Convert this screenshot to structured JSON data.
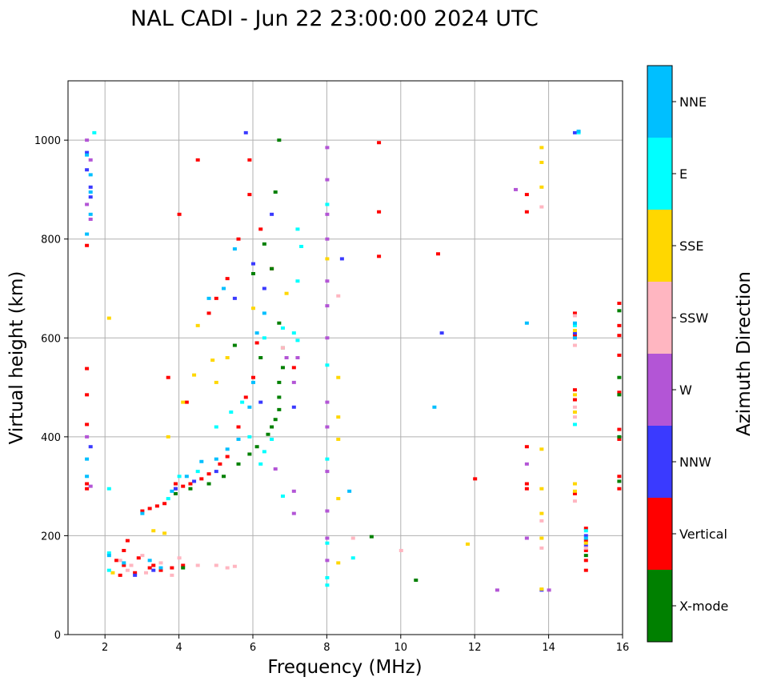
{
  "chart_data": {
    "type": "scatter",
    "title": "NAL CADI - Jun 22 23:00:00 2024 UTC",
    "xlabel": "Frequency (MHz)",
    "ylabel": "Virtual height (km)",
    "xlim": [
      1,
      16
    ],
    "ylim": [
      0,
      1120
    ],
    "xticks": [
      "2",
      "4",
      "6",
      "8",
      "10",
      "12",
      "14",
      "16"
    ],
    "yticks": [
      "0",
      "200",
      "400",
      "600",
      "800",
      "1000"
    ],
    "grid": true,
    "colorbar": {
      "label": "Azimuth Direction",
      "categories": [
        {
          "name": "X-mode",
          "color": "#008000"
        },
        {
          "name": "Vertical",
          "color": "#ff0000"
        },
        {
          "name": "NNW",
          "color": "#3a3aff"
        },
        {
          "name": "W",
          "color": "#b355d6"
        },
        {
          "name": "SSW",
          "color": "#ffb6c1"
        },
        {
          "name": "SSE",
          "color": "#ffd700"
        },
        {
          "name": "E",
          "color": "#00ffff"
        },
        {
          "name": "NNE",
          "color": "#00bfff"
        }
      ]
    },
    "series": [
      {
        "name": "Vertical",
        "points": [
          [
            1.5,
            538
          ],
          [
            1.5,
            485
          ],
          [
            1.5,
            425
          ],
          [
            1.5,
            305
          ],
          [
            1.5,
            295
          ],
          [
            1.5,
            787
          ],
          [
            2.3,
            150
          ],
          [
            2.5,
            140
          ],
          [
            2.5,
            170
          ],
          [
            2.6,
            190
          ],
          [
            2.8,
            125
          ],
          [
            3.0,
            250
          ],
          [
            3.2,
            255
          ],
          [
            3.4,
            260
          ],
          [
            3.6,
            265
          ],
          [
            3.9,
            295
          ],
          [
            4.1,
            300
          ],
          [
            4.3,
            305
          ],
          [
            3.2,
            135
          ],
          [
            3.5,
            130
          ],
          [
            3.8,
            135
          ],
          [
            4.1,
            140
          ],
          [
            4.6,
            315
          ],
          [
            4.8,
            325
          ],
          [
            5.1,
            345
          ],
          [
            5.3,
            360
          ],
          [
            5.6,
            420
          ],
          [
            5.8,
            480
          ],
          [
            6.0,
            520
          ],
          [
            6.1,
            590
          ],
          [
            3.7,
            520
          ],
          [
            4.2,
            470
          ],
          [
            4.8,
            650
          ],
          [
            5.0,
            680
          ],
          [
            5.3,
            720
          ],
          [
            5.6,
            800
          ],
          [
            5.9,
            890
          ],
          [
            6.2,
            820
          ],
          [
            6.5,
            740
          ],
          [
            4.0,
            850
          ],
          [
            4.5,
            960
          ],
          [
            5.9,
            960
          ],
          [
            7.1,
            540
          ],
          [
            9.4,
            995
          ],
          [
            9.4,
            855
          ],
          [
            9.4,
            765
          ],
          [
            11.0,
            770
          ],
          [
            12.0,
            315
          ],
          [
            13.4,
            890
          ],
          [
            13.4,
            855
          ],
          [
            13.4,
            380
          ],
          [
            13.4,
            305
          ],
          [
            13.4,
            295
          ],
          [
            14.7,
            650
          ],
          [
            14.7,
            605
          ],
          [
            14.7,
            495
          ],
          [
            14.7,
            475
          ],
          [
            14.7,
            285
          ],
          [
            15.0,
            215
          ],
          [
            15.0,
            190
          ],
          [
            15.0,
            170
          ],
          [
            15.0,
            150
          ],
          [
            15.0,
            130
          ],
          [
            15.9,
            670
          ],
          [
            15.9,
            625
          ],
          [
            15.9,
            605
          ],
          [
            15.9,
            565
          ],
          [
            15.9,
            490
          ],
          [
            15.9,
            415
          ],
          [
            15.9,
            395
          ],
          [
            15.9,
            320
          ],
          [
            15.9,
            295
          ],
          [
            2.9,
            155
          ],
          [
            3.3,
            140
          ],
          [
            3.9,
            305
          ],
          [
            2.4,
            120
          ]
        ]
      },
      {
        "name": "X-mode",
        "points": [
          [
            3.9,
            285
          ],
          [
            4.3,
            295
          ],
          [
            4.8,
            305
          ],
          [
            5.2,
            320
          ],
          [
            5.6,
            345
          ],
          [
            5.9,
            365
          ],
          [
            6.1,
            380
          ],
          [
            6.4,
            405
          ],
          [
            6.5,
            420
          ],
          [
            6.6,
            435
          ],
          [
            6.7,
            455
          ],
          [
            6.7,
            480
          ],
          [
            6.7,
            510
          ],
          [
            6.0,
            730
          ],
          [
            6.3,
            790
          ],
          [
            6.5,
            740
          ],
          [
            6.7,
            630
          ],
          [
            6.7,
            1000
          ],
          [
            6.6,
            895
          ],
          [
            6.8,
            580
          ],
          [
            9.2,
            198
          ],
          [
            10.4,
            110
          ],
          [
            15.9,
            655
          ],
          [
            15.9,
            520
          ],
          [
            15.9,
            485
          ],
          [
            15.9,
            400
          ],
          [
            15.9,
            310
          ],
          [
            4.1,
            135
          ],
          [
            5.5,
            585
          ],
          [
            6.2,
            560
          ],
          [
            6.8,
            540
          ],
          [
            15.0,
            160
          ]
        ]
      },
      {
        "name": "NNW",
        "points": [
          [
            1.5,
            975
          ],
          [
            1.5,
            940
          ],
          [
            1.6,
            905
          ],
          [
            1.6,
            885
          ],
          [
            2.8,
            120
          ],
          [
            3.3,
            130
          ],
          [
            3.9,
            295
          ],
          [
            4.4,
            310
          ],
          [
            5.0,
            330
          ],
          [
            5.5,
            680
          ],
          [
            5.8,
            1015
          ],
          [
            6.0,
            750
          ],
          [
            6.5,
            850
          ],
          [
            6.3,
            700
          ],
          [
            8.4,
            760
          ],
          [
            11.1,
            610
          ],
          [
            13.8,
            90
          ],
          [
            14.7,
            610
          ],
          [
            14.7,
            1015
          ],
          [
            15.0,
            200
          ],
          [
            6.2,
            470
          ],
          [
            7.1,
            460
          ],
          [
            15.0,
            180
          ],
          [
            1.6,
            380
          ]
        ]
      },
      {
        "name": "W",
        "points": [
          [
            1.5,
            1000
          ],
          [
            1.6,
            960
          ],
          [
            1.5,
            870
          ],
          [
            1.6,
            840
          ],
          [
            6.6,
            335
          ],
          [
            7.1,
            290
          ],
          [
            7.1,
            245
          ],
          [
            8.0,
            985
          ],
          [
            8.0,
            920
          ],
          [
            8.0,
            850
          ],
          [
            8.0,
            800
          ],
          [
            8.0,
            715
          ],
          [
            8.0,
            665
          ],
          [
            8.0,
            600
          ],
          [
            8.0,
            470
          ],
          [
            8.0,
            420
          ],
          [
            8.0,
            330
          ],
          [
            8.0,
            250
          ],
          [
            8.0,
            195
          ],
          [
            8.0,
            150
          ],
          [
            12.6,
            90
          ],
          [
            13.1,
            900
          ],
          [
            13.4,
            345
          ],
          [
            13.4,
            195
          ],
          [
            14.0,
            90
          ],
          [
            7.2,
            560
          ],
          [
            6.9,
            560
          ],
          [
            7.1,
            510
          ],
          [
            1.5,
            400
          ],
          [
            1.6,
            300
          ]
        ]
      },
      {
        "name": "SSW",
        "points": [
          [
            2.4,
            150
          ],
          [
            2.7,
            140
          ],
          [
            3.0,
            160
          ],
          [
            3.5,
            145
          ],
          [
            4.0,
            155
          ],
          [
            4.5,
            140
          ],
          [
            5.0,
            140
          ],
          [
            5.5,
            138
          ],
          [
            5.3,
            135
          ],
          [
            6.8,
            580
          ],
          [
            8.3,
            685
          ],
          [
            8.7,
            195
          ],
          [
            10.0,
            170
          ],
          [
            13.8,
            865
          ],
          [
            13.8,
            230
          ],
          [
            13.8,
            175
          ],
          [
            14.7,
            645
          ],
          [
            14.7,
            585
          ],
          [
            14.7,
            460
          ],
          [
            14.7,
            440
          ],
          [
            14.7,
            270
          ],
          [
            15.0,
            175
          ],
          [
            3.8,
            120
          ],
          [
            2.6,
            130
          ],
          [
            3.1,
            125
          ]
        ]
      },
      {
        "name": "SSE",
        "points": [
          [
            2.1,
            640
          ],
          [
            3.7,
            400
          ],
          [
            4.1,
            470
          ],
          [
            4.4,
            525
          ],
          [
            4.5,
            625
          ],
          [
            4.9,
            555
          ],
          [
            5.0,
            510
          ],
          [
            5.3,
            560
          ],
          [
            6.0,
            660
          ],
          [
            6.9,
            690
          ],
          [
            8.0,
            760
          ],
          [
            8.3,
            520
          ],
          [
            8.3,
            440
          ],
          [
            8.3,
            395
          ],
          [
            8.3,
            275
          ],
          [
            8.3,
            145
          ],
          [
            11.8,
            183
          ],
          [
            13.8,
            985
          ],
          [
            13.8,
            955
          ],
          [
            13.8,
            905
          ],
          [
            13.8,
            375
          ],
          [
            13.8,
            295
          ],
          [
            13.8,
            245
          ],
          [
            13.8,
            195
          ],
          [
            13.8,
            92
          ],
          [
            14.7,
            615
          ],
          [
            14.7,
            485
          ],
          [
            14.7,
            450
          ],
          [
            14.7,
            305
          ],
          [
            14.7,
            290
          ],
          [
            15.0,
            185
          ],
          [
            3.3,
            210
          ],
          [
            3.6,
            205
          ],
          [
            2.2,
            125
          ]
        ]
      },
      {
        "name": "E",
        "points": [
          [
            1.7,
            1015
          ],
          [
            2.1,
            165
          ],
          [
            2.1,
            130
          ],
          [
            2.1,
            295
          ],
          [
            3.7,
            275
          ],
          [
            4.0,
            320
          ],
          [
            4.5,
            330
          ],
          [
            5.0,
            420
          ],
          [
            5.4,
            450
          ],
          [
            5.7,
            470
          ],
          [
            5.9,
            400
          ],
          [
            6.2,
            345
          ],
          [
            6.3,
            370
          ],
          [
            6.5,
            395
          ],
          [
            6.8,
            280
          ],
          [
            7.2,
            820
          ],
          [
            7.2,
            715
          ],
          [
            7.3,
            785
          ],
          [
            8.0,
            545
          ],
          [
            8.0,
            355
          ],
          [
            8.0,
            185
          ],
          [
            8.0,
            115
          ],
          [
            8.0,
            100
          ],
          [
            8.0,
            870
          ],
          [
            8.7,
            155
          ],
          [
            14.7,
            625
          ],
          [
            14.7,
            425
          ],
          [
            14.8,
            1015
          ],
          [
            15.0,
            210
          ],
          [
            6.8,
            620
          ],
          [
            7.1,
            610
          ],
          [
            7.2,
            595
          ],
          [
            6.3,
            600
          ]
        ]
      },
      {
        "name": "NNE",
        "points": [
          [
            1.5,
            970
          ],
          [
            1.6,
            930
          ],
          [
            1.6,
            895
          ],
          [
            1.6,
            850
          ],
          [
            1.5,
            810
          ],
          [
            2.1,
            160
          ],
          [
            2.5,
            145
          ],
          [
            3.2,
            150
          ],
          [
            3.5,
            135
          ],
          [
            3.8,
            290
          ],
          [
            4.2,
            320
          ],
          [
            4.6,
            350
          ],
          [
            5.0,
            355
          ],
          [
            5.3,
            375
          ],
          [
            5.6,
            395
          ],
          [
            5.9,
            460
          ],
          [
            6.0,
            510
          ],
          [
            5.5,
            780
          ],
          [
            5.2,
            700
          ],
          [
            4.8,
            680
          ],
          [
            6.1,
            610
          ],
          [
            6.3,
            650
          ],
          [
            14.8,
            1018
          ],
          [
            15.0,
            195
          ],
          [
            13.4,
            630
          ],
          [
            14.7,
            630
          ],
          [
            14.7,
            600
          ],
          [
            3.0,
            245
          ],
          [
            8.6,
            290
          ],
          [
            10.9,
            460
          ],
          [
            1.5,
            355
          ],
          [
            1.5,
            320
          ]
        ]
      }
    ]
  }
}
